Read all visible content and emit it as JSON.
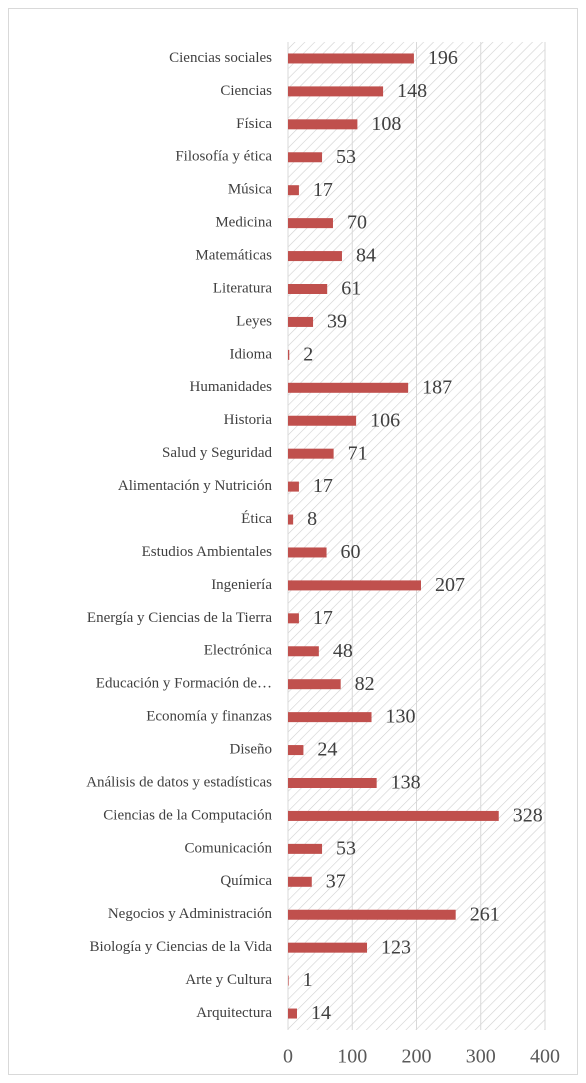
{
  "chart_data": {
    "type": "bar",
    "orientation": "horizontal",
    "categories": [
      "Ciencias sociales",
      "Ciencias",
      "Física",
      "Filosofía y ética",
      "Música",
      "Medicina",
      "Matemáticas",
      "Literatura",
      "Leyes",
      "Idioma",
      "Humanidades",
      "Historia",
      "Salud y Seguridad",
      "Alimentación y Nutrición",
      "Ética",
      "Estudios Ambientales",
      "Ingeniería",
      "Energía y Ciencias de la Tierra",
      "Electrónica",
      "Educación y Formación de…",
      "Economía y finanzas",
      "Diseño",
      "Análisis de datos y estadísticas",
      "Ciencias de la Computación",
      "Comunicación",
      "Química",
      "Negocios y Administración",
      "Biología y Ciencias de la Vida",
      "Arte y Cultura",
      "Arquitectura"
    ],
    "values": [
      196,
      148,
      108,
      53,
      17,
      70,
      84,
      61,
      39,
      2,
      187,
      106,
      71,
      17,
      8,
      60,
      207,
      17,
      48,
      82,
      130,
      24,
      138,
      328,
      53,
      37,
      261,
      123,
      1,
      14
    ],
    "color": "#c0504d",
    "xlim": [
      0,
      400
    ],
    "xticks": [
      0,
      100,
      200,
      300,
      400
    ],
    "grid": true
  }
}
